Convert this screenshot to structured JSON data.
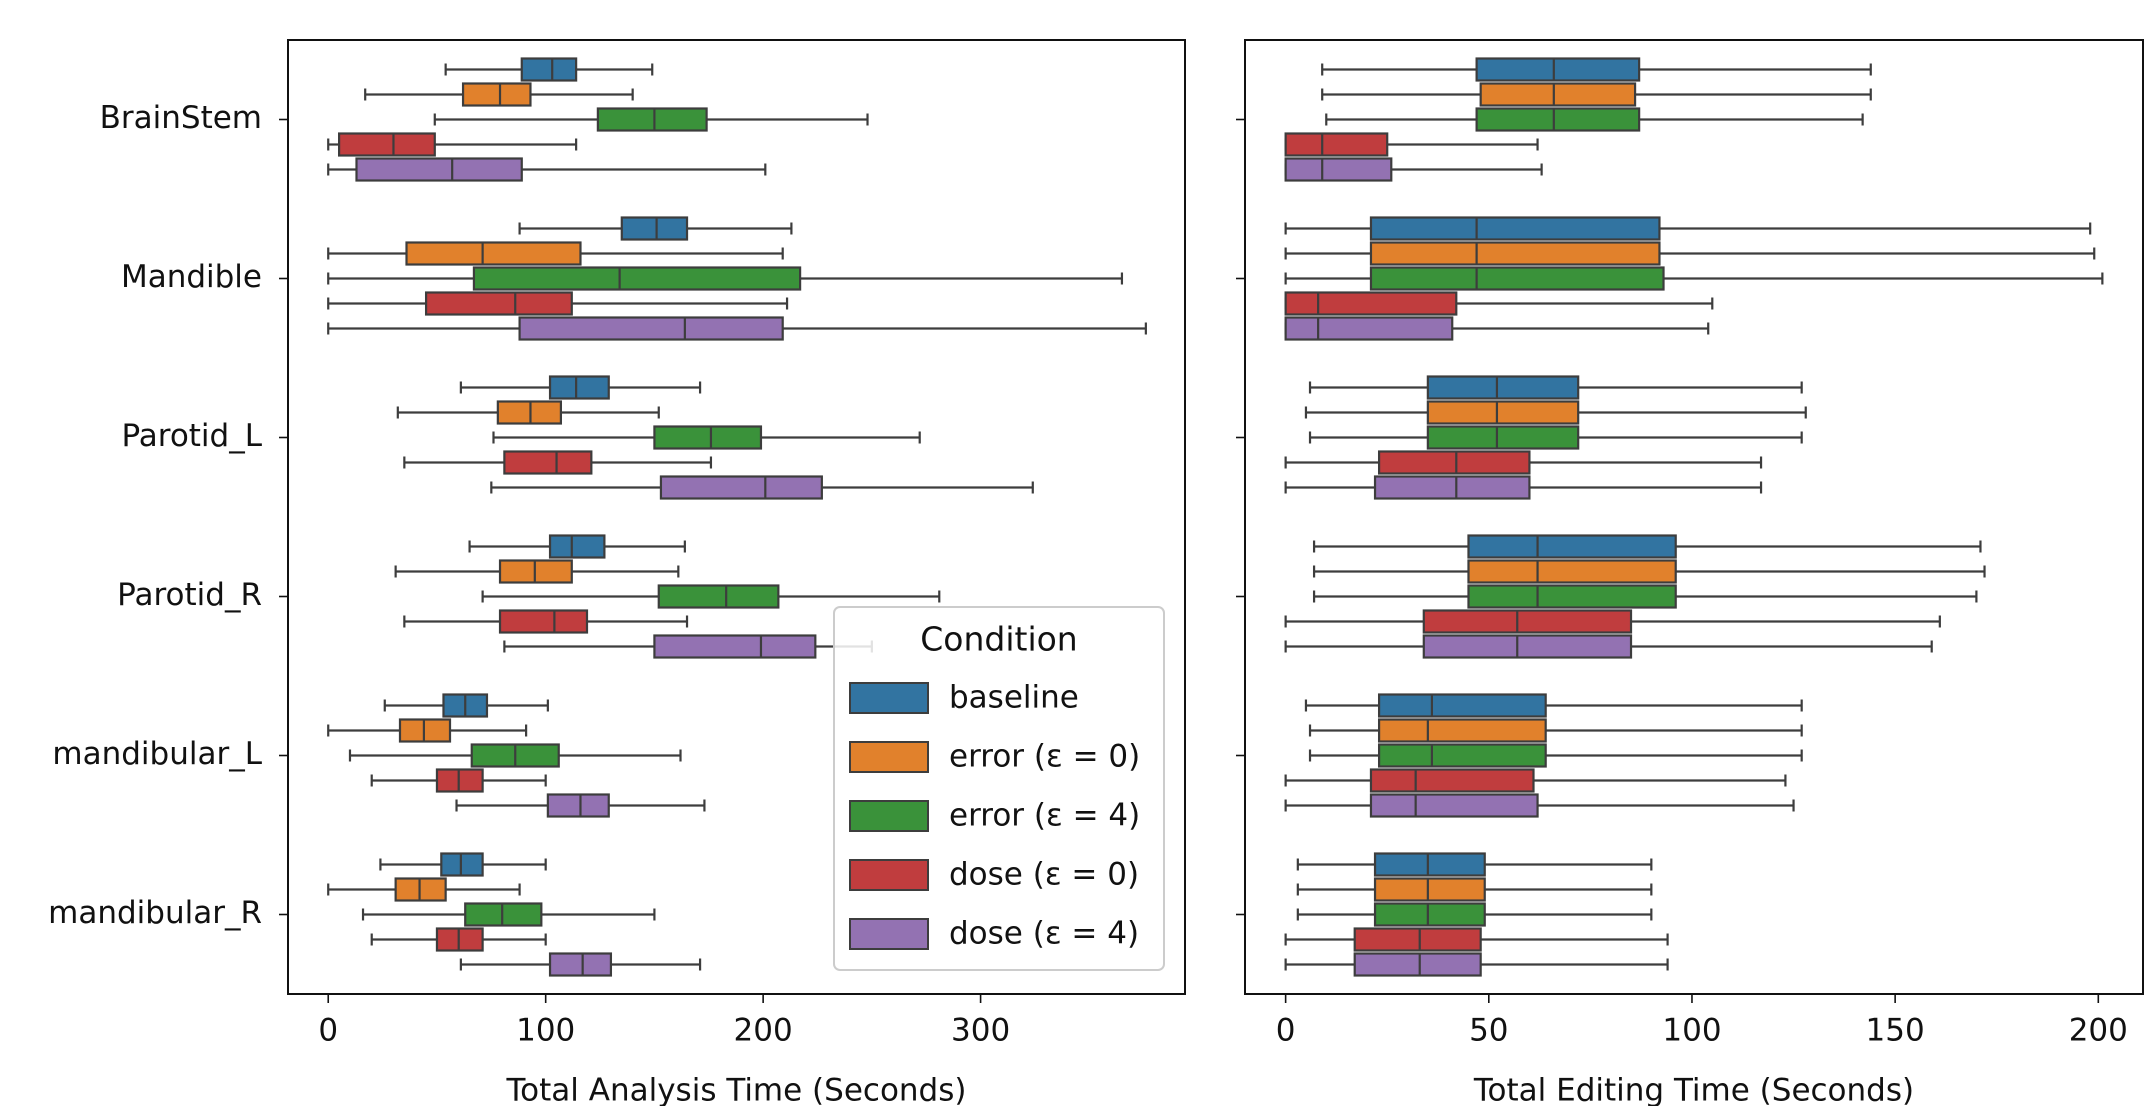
{
  "chart_data": [
    {
      "type": "box",
      "xlabel": "Total Analysis Time (Seconds)",
      "categories": [
        "BrainStem",
        "Mandible",
        "Parotid_L",
        "Parotid_R",
        "mandibular_L",
        "mandibular_R"
      ],
      "xlim": [
        -18.5,
        394
      ],
      "xticks": [
        0,
        100,
        200,
        300
      ],
      "legend": "lower right",
      "legend_title": "Condition",
      "series": [
        {
          "name": "baseline",
          "color": "#3274a1",
          "low": [
            54,
            88,
            61,
            65,
            26,
            24
          ],
          "q1": [
            89,
            135,
            102,
            102,
            53,
            52
          ],
          "median": [
            103,
            151,
            114,
            112,
            63,
            61
          ],
          "q3": [
            114,
            165,
            129,
            127,
            73,
            71
          ],
          "high": [
            149,
            213,
            171,
            164,
            101,
            100
          ]
        },
        {
          "name": "error (ε = 0)",
          "color": "#e1812c",
          "low": [
            17,
            0,
            32,
            31,
            0,
            0
          ],
          "q1": [
            62,
            36,
            78,
            79,
            33,
            31
          ],
          "median": [
            79,
            71,
            93,
            95,
            44,
            42
          ],
          "q3": [
            93,
            116,
            107,
            112,
            56,
            54
          ],
          "high": [
            140,
            209,
            152,
            161,
            91,
            88
          ]
        },
        {
          "name": "error (ε = 4)",
          "color": "#3a923a",
          "low": [
            49,
            0,
            76,
            71,
            10,
            16
          ],
          "q1": [
            124,
            67,
            150,
            152,
            66,
            63
          ],
          "median": [
            150,
            134,
            176,
            183,
            86,
            80
          ],
          "q3": [
            174,
            217,
            199,
            207,
            106,
            98
          ],
          "high": [
            248,
            365,
            272,
            281,
            162,
            150
          ]
        },
        {
          "name": "dose (ε = 0)",
          "color": "#c03d3e",
          "low": [
            0,
            0,
            35,
            35,
            20,
            20
          ],
          "q1": [
            5,
            45,
            81,
            79,
            50,
            50
          ],
          "median": [
            30,
            86,
            105,
            104,
            60,
            60
          ],
          "q3": [
            49,
            112,
            121,
            119,
            71,
            71
          ],
          "high": [
            114,
            211,
            176,
            165,
            100,
            100
          ]
        },
        {
          "name": "dose (ε = 4)",
          "color": "#9372b2",
          "low": [
            0,
            0,
            75,
            81,
            59,
            61
          ],
          "q1": [
            13,
            88,
            153,
            150,
            101,
            102
          ],
          "median": [
            57,
            164,
            201,
            199,
            116,
            117
          ],
          "q3": [
            89,
            209,
            227,
            224,
            129,
            130
          ],
          "high": [
            201,
            376,
            324,
            250,
            173,
            171
          ]
        }
      ]
    },
    {
      "type": "box",
      "xlabel": "Total Editing Time (Seconds)",
      "xlim": [
        -10,
        211
      ],
      "xticks": [
        0,
        50,
        100,
        150,
        200
      ],
      "series": [
        {
          "color": "#3274a1",
          "low": [
            9,
            0,
            6,
            7,
            5,
            3
          ],
          "q1": [
            47,
            21,
            35,
            45,
            23,
            22
          ],
          "median": [
            66,
            47,
            52,
            62,
            36,
            35
          ],
          "q3": [
            87,
            92,
            72,
            96,
            64,
            49
          ],
          "high": [
            144,
            198,
            127,
            171,
            127,
            90
          ]
        },
        {
          "color": "#e1812c",
          "low": [
            9,
            0,
            5,
            7,
            6,
            3
          ],
          "q1": [
            48,
            21,
            35,
            45,
            23,
            22
          ],
          "median": [
            66,
            47,
            52,
            62,
            35,
            35
          ],
          "q3": [
            86,
            92,
            72,
            96,
            64,
            49
          ],
          "high": [
            144,
            199,
            128,
            172,
            127,
            90
          ]
        },
        {
          "color": "#3a923a",
          "low": [
            10,
            0,
            6,
            7,
            6,
            3
          ],
          "q1": [
            47,
            21,
            35,
            45,
            23,
            22
          ],
          "median": [
            66,
            47,
            52,
            62,
            36,
            35
          ],
          "q3": [
            87,
            93,
            72,
            96,
            64,
            49
          ],
          "high": [
            142,
            201,
            127,
            170,
            127,
            90
          ]
        },
        {
          "color": "#c03d3e",
          "low": [
            0,
            0,
            0,
            0,
            0,
            0
          ],
          "q1": [
            0,
            0,
            23,
            34,
            21,
            17
          ],
          "median": [
            9,
            8,
            42,
            57,
            32,
            33
          ],
          "q3": [
            25,
            42,
            60,
            85,
            61,
            48
          ],
          "high": [
            62,
            105,
            117,
            161,
            123,
            94
          ]
        },
        {
          "color": "#9372b2",
          "low": [
            0,
            0,
            0,
            0,
            0,
            0
          ],
          "q1": [
            0,
            0,
            22,
            34,
            21,
            17
          ],
          "median": [
            9,
            8,
            42,
            57,
            32,
            33
          ],
          "q3": [
            26,
            41,
            60,
            85,
            62,
            48
          ],
          "high": [
            63,
            104,
            117,
            159,
            125,
            94
          ]
        }
      ]
    }
  ]
}
